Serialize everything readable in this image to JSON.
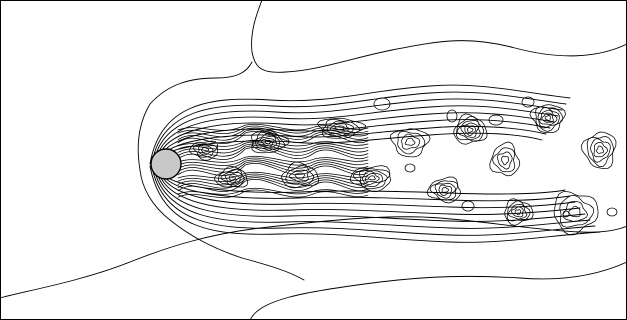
{
  "figure": {
    "type": "contour plot",
    "style": "black line contours on white background",
    "colors": {
      "background": "#ffffff",
      "contour_line": "#000000",
      "cylinder_fill": "#c8c8c8",
      "cylinder_outline": "#000000"
    },
    "object": "cylinder",
    "flow_direction": "left-to-right"
  }
}
